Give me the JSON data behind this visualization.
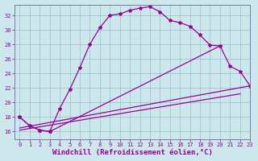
{
  "xlabel": "Windchill (Refroidissement éolien,°C)",
  "bg_color": "#cce8ec",
  "grid_color": "#9bbfc8",
  "line_color": "#990099",
  "spine_color": "#7a7aaa",
  "xlim_min": -0.5,
  "xlim_max": 23,
  "ylim_min": 15.0,
  "ylim_max": 33.5,
  "xticks": [
    0,
    1,
    2,
    3,
    4,
    5,
    6,
    7,
    8,
    9,
    10,
    11,
    12,
    13,
    14,
    15,
    16,
    17,
    18,
    19,
    20,
    21,
    22,
    23
  ],
  "yticks": [
    16,
    18,
    20,
    22,
    24,
    26,
    28,
    30,
    32
  ],
  "curve1_x": [
    0,
    1,
    2,
    3,
    4,
    5,
    6,
    7,
    8,
    9,
    10,
    11,
    12,
    13,
    14,
    15,
    16,
    17,
    18,
    19,
    20
  ],
  "curve1_y": [
    18.0,
    16.8,
    16.2,
    16.0,
    19.2,
    21.8,
    24.8,
    28.0,
    30.3,
    32.0,
    32.2,
    32.7,
    33.0,
    33.2,
    32.5,
    31.3,
    31.0,
    30.5,
    29.3,
    27.9,
    27.8
  ],
  "curve2_x": [
    0,
    1,
    2,
    3,
    20,
    21,
    22,
    23
  ],
  "curve2_y": [
    18.0,
    16.8,
    16.2,
    16.0,
    27.8,
    25.0,
    24.3,
    22.3
  ],
  "line3_x": [
    0,
    23
  ],
  "line3_y": [
    16.5,
    22.3
  ],
  "line4_x": [
    0,
    22
  ],
  "line4_y": [
    16.2,
    21.2
  ],
  "tick_fontsize": 5,
  "xlabel_fontsize": 6.5
}
